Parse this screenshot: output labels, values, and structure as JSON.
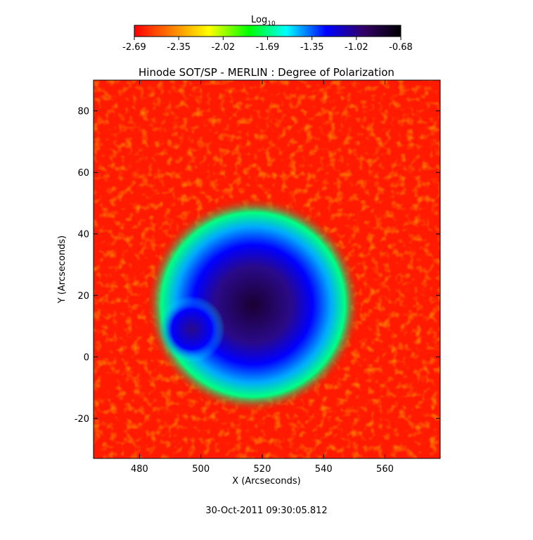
{
  "chart_data": {
    "type": "heatmap",
    "title": "Hinode SOT/SP - MERLIN : Degree of Polarization",
    "xlabel": "X (Arcseconds)",
    "ylabel": "Y (Arcseconds)",
    "xlim": [
      465,
      578
    ],
    "ylim": [
      -33,
      90
    ],
    "x_ticks": [
      480,
      500,
      520,
      540,
      560
    ],
    "y_ticks": [
      -20,
      0,
      20,
      40,
      60,
      80
    ],
    "colorbar": {
      "label_base": "Log",
      "label_sub": "10",
      "range": [
        -2.69,
        -0.68
      ],
      "ticks": [
        "-2.69",
        "-2.35",
        "-2.02",
        "-1.69",
        "-1.35",
        "-1.02",
        "-0.68"
      ],
      "colors": [
        "#ff0000",
        "#ff7f00",
        "#ffff00",
        "#00ff00",
        "#00ffff",
        "#0000ff",
        "#330066",
        "#000000"
      ]
    },
    "features": {
      "umbra_center": [
        517,
        17
      ],
      "umbra_radius": 10,
      "penumbra_radius": 22,
      "secondary_umbra_center": [
        497,
        9
      ],
      "secondary_umbra_radius": 6
    },
    "footer": "30-Oct-2011 09:30:05.812"
  }
}
